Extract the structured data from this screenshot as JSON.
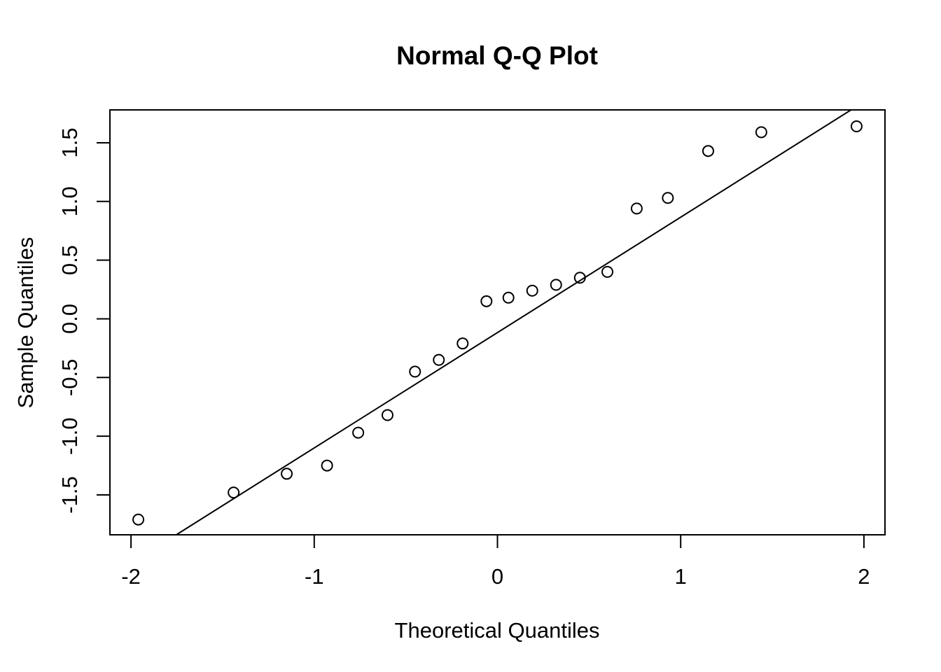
{
  "chart_data": {
    "type": "scatter",
    "title": "Normal Q-Q Plot",
    "xlabel": "Theoretical Quantiles",
    "ylabel": "Sample Quantiles",
    "xlim": [
      -2.115,
      2.115
    ],
    "ylim": [
      -1.84,
      1.78
    ],
    "xticks": [
      -2,
      -1,
      0,
      1,
      2
    ],
    "xtick_labels": [
      "-2",
      "-1",
      "0",
      "1",
      "2"
    ],
    "yticks": [
      -1.5,
      -1.0,
      -0.5,
      0.0,
      0.5,
      1.0,
      1.5
    ],
    "ytick_labels": [
      "-1.5",
      "-1.0",
      "-0.5",
      "0.0",
      "0.5",
      "1.0",
      "1.5"
    ],
    "grid": false,
    "legend": "none",
    "points": {
      "x": [
        -1.96,
        -1.44,
        -1.15,
        -0.93,
        -0.76,
        -0.6,
        -0.45,
        -0.32,
        -0.19,
        -0.06,
        0.06,
        0.19,
        0.32,
        0.45,
        0.6,
        0.76,
        0.93,
        1.15,
        1.44,
        1.96
      ],
      "y": [
        -1.71,
        -1.48,
        -1.32,
        -1.25,
        -0.97,
        -0.82,
        -0.45,
        -0.35,
        -0.21,
        0.15,
        0.18,
        0.24,
        0.29,
        0.35,
        0.4,
        0.94,
        1.03,
        1.43,
        1.59,
        1.64
      ]
    },
    "reference_line": {
      "intercept": -0.117,
      "slope": 0.983
    }
  }
}
